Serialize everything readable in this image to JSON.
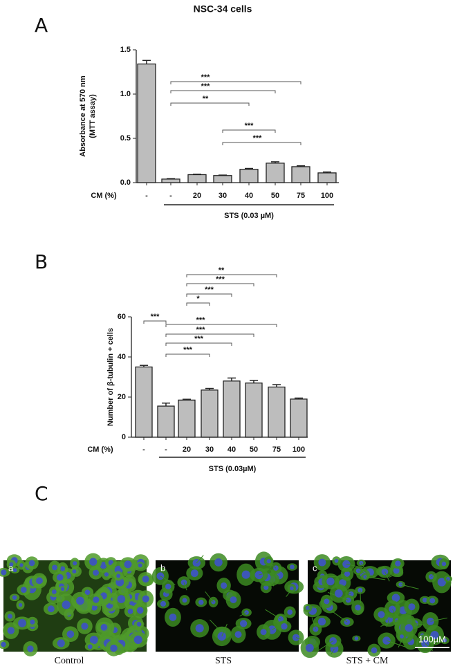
{
  "chart_data": [
    {
      "type": "bar",
      "panel": "A",
      "title": "NSC-34 cells",
      "ylabel": [
        "Absorbance at 570 nm",
        "(MTT assay)"
      ],
      "xlabel": "CM (%)",
      "group_label": "STS (0.03 µM)",
      "categories": [
        "-",
        "-",
        "20",
        "30",
        "40",
        "50",
        "75",
        "100"
      ],
      "values": [
        1.34,
        0.04,
        0.09,
        0.08,
        0.15,
        0.22,
        0.18,
        0.11
      ],
      "errors": [
        0.04,
        0.005,
        0.005,
        0.005,
        0.01,
        0.015,
        0.01,
        0.01
      ],
      "color": "#bdbdbd",
      "ylim": [
        0,
        1.5
      ],
      "yticks": [
        {
          "value": 0,
          "label": "0.0"
        },
        0.5,
        {
          "value": 1,
          "label": "1.0"
        },
        1.5
      ],
      "significance": [
        {
          "label": "***",
          "groups": [
            1,
            6
          ]
        },
        {
          "label": "***",
          "groups": [
            1,
            5
          ]
        },
        {
          "label": "**",
          "groups": [
            1,
            4
          ]
        },
        {
          "label": "***",
          "groups": [
            3,
            5
          ]
        },
        {
          "label": "***",
          "groups": [
            3,
            6
          ]
        }
      ]
    },
    {
      "type": "bar",
      "panel": "B",
      "ylabel": [
        "Number of β-tubulin + cells"
      ],
      "xlabel": "CM (%)",
      "group_label": "STS (0.03µM)",
      "categories": [
        "-",
        "-",
        "20",
        "30",
        "40",
        "50",
        "75",
        "100"
      ],
      "values": [
        35,
        15.5,
        18.5,
        23.5,
        28,
        27,
        25,
        19
      ],
      "errors": [
        0.8,
        1.5,
        0.4,
        0.8,
        1.5,
        1.3,
        1.2,
        0.5
      ],
      "color": "#bdbdbd",
      "ylim": [
        0,
        60
      ],
      "yticks": [
        0,
        20,
        40,
        60
      ],
      "significance": [
        {
          "label": "***",
          "groups": [
            0,
            1
          ]
        },
        {
          "label": "***",
          "groups": [
            1,
            6
          ]
        },
        {
          "label": "***",
          "groups": [
            1,
            5
          ]
        },
        {
          "label": "***",
          "groups": [
            1,
            4
          ]
        },
        {
          "label": "***",
          "groups": [
            1,
            3
          ]
        },
        {
          "label": "**",
          "groups": [
            2,
            6
          ]
        },
        {
          "label": "***",
          "groups": [
            2,
            5
          ]
        },
        {
          "label": "***",
          "groups": [
            2,
            4
          ]
        },
        {
          "label": "*",
          "groups": [
            2,
            3
          ]
        }
      ]
    }
  ],
  "panel_c": {
    "label": "C",
    "images": [
      {
        "letter": "a",
        "caption": "Control"
      },
      {
        "letter": "b",
        "caption": "STS"
      },
      {
        "letter": "c",
        "caption": "STS + CM"
      }
    ],
    "scale_bar": "100µM"
  }
}
